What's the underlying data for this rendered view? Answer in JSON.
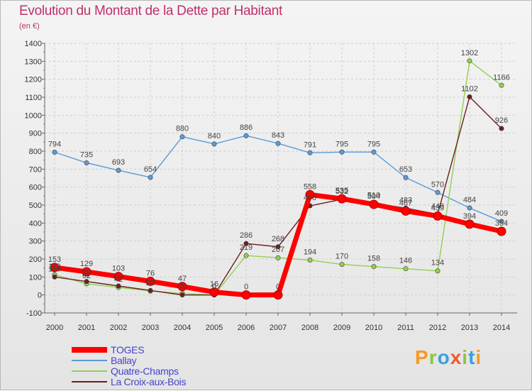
{
  "title": "Evolution du Montant de la Dette par Habitant",
  "subtitle": "(en €)",
  "brand": "Proxiti",
  "colors": {
    "title": "#c0306a",
    "legend_text": "#4444cc",
    "toges": "#ff0000",
    "ballay": "#5b9bd5",
    "quatre_champs": "#92d050",
    "croix_aux_bois": "#6b1f1f"
  },
  "chart_data": {
    "type": "line",
    "title": "Evolution du Montant de la Dette par Habitant",
    "ylabel": "(en €)",
    "x": [
      "2000",
      "2001",
      "2002",
      "2003",
      "2004",
      "2005",
      "2006",
      "2007",
      "2008",
      "2009",
      "2010",
      "2011",
      "2012",
      "2013",
      "2014"
    ],
    "ylim": [
      -100,
      1400
    ],
    "yticks": [
      -100,
      0,
      100,
      200,
      300,
      400,
      500,
      600,
      700,
      800,
      900,
      1000,
      1100,
      1200,
      1300,
      1400
    ],
    "grid": true,
    "legend_position": "bottom-left",
    "series": [
      {
        "name": "TOGES",
        "color": "#ff0000",
        "values": [
          153,
          129,
          103,
          76,
          47,
          16,
          0,
          0,
          558,
          535,
          504,
          467,
          439,
          394,
          354
        ],
        "labels": [
          "153",
          "129",
          "103",
          "76",
          "47",
          "16",
          "0",
          "0",
          "558",
          "535",
          "504",
          "467",
          "439",
          "394",
          "354"
        ]
      },
      {
        "name": "Ballay",
        "color": "#5b9bd5",
        "values": [
          794,
          735,
          693,
          654,
          880,
          840,
          886,
          843,
          791,
          795,
          795,
          653,
          570,
          484,
          409
        ],
        "labels": [
          "794",
          "735",
          "693",
          "654",
          "880",
          "840",
          "886",
          "843",
          "791",
          "795",
          "795",
          "653",
          "570",
          "484",
          "409"
        ]
      },
      {
        "name": "Quatre-Champs",
        "color": "#92d050",
        "values": [
          113,
          62,
          42,
          22,
          8,
          0,
          219,
          207,
          194,
          170,
          158,
          146,
          134,
          1302,
          1166
        ],
        "labels": [
          "113",
          "62",
          "42",
          "22",
          "8",
          "0",
          "219",
          "207",
          "194",
          "170",
          "158",
          "146",
          "134",
          "1302",
          "1166"
        ]
      },
      {
        "name": "La Croix-aux-Bois",
        "color": "#6b1f1f",
        "values": [
          100,
          75,
          50,
          25,
          0,
          0,
          286,
          268,
          496,
          532,
          510,
          483,
          449,
          1102,
          926
        ],
        "labels": [
          "100",
          "75",
          "50",
          "25",
          "0",
          "0",
          "286",
          "268",
          "496",
          "532",
          "510",
          "483",
          "449",
          "1102",
          "926"
        ]
      }
    ]
  }
}
